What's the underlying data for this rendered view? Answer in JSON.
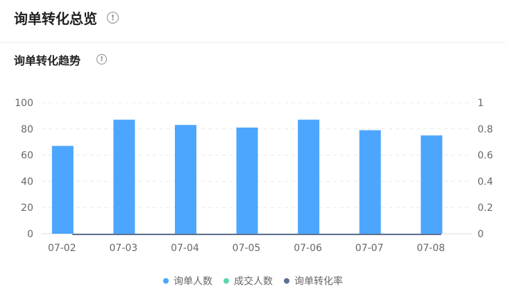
{
  "header": {
    "title": "询单转化总览",
    "info_icon": "info-icon"
  },
  "section": {
    "title": "询单转化趋势",
    "info_icon": "info-icon"
  },
  "colors": {
    "inquiries": "#4da6fe",
    "deals": "#5ad8a6",
    "rate": "#5d7092",
    "grid": "#e8e8e8",
    "axis_text": "#666666"
  },
  "chart_data": {
    "type": "bar",
    "categories": [
      "07-02",
      "07-03",
      "07-04",
      "07-05",
      "07-06",
      "07-07",
      "07-08"
    ],
    "series": [
      {
        "name": "询单人数",
        "type": "bar",
        "axis": "left",
        "values": [
          67,
          87,
          83,
          81,
          87,
          79,
          75
        ]
      },
      {
        "name": "成交人数",
        "type": "bar",
        "axis": "left",
        "values": [
          0,
          0,
          0,
          0,
          0,
          0,
          0
        ]
      },
      {
        "name": "询单转化率",
        "type": "line",
        "axis": "right",
        "values": [
          0,
          0,
          0,
          0,
          0,
          0,
          0
        ]
      }
    ],
    "y_left": {
      "ticks": [
        "0",
        "20",
        "40",
        "60",
        "80",
        "100"
      ],
      "range": [
        0,
        100
      ]
    },
    "y_right": {
      "ticks": [
        "0",
        "0.2",
        "0.4",
        "0.6",
        "0.8",
        "1"
      ],
      "range": [
        0,
        1
      ]
    },
    "grid": true,
    "legend_position": "bottom-center"
  }
}
